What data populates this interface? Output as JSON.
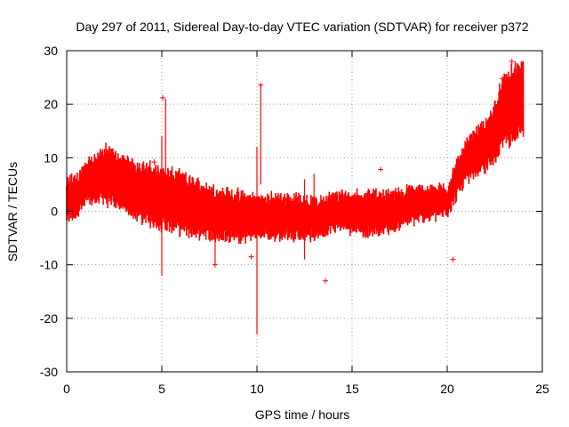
{
  "chart_data": {
    "type": "scatter",
    "title": "Day 297 of 2011, Sidereal Day-to-day VTEC variation (SDTVAR) for receiver p372",
    "xlabel": "GPS time / hours",
    "ylabel": "SDTVAR / TECUs",
    "xlim": [
      0,
      25
    ],
    "ylim": [
      -30,
      30
    ],
    "x_ticks": [
      0,
      5,
      10,
      15,
      20,
      25
    ],
    "y_ticks": [
      -30,
      -20,
      -10,
      0,
      10,
      20,
      30
    ],
    "grid": true,
    "marker": "+",
    "color": "#ff0000",
    "series": [
      {
        "name": "p372",
        "band_center": [
          [
            0,
            2
          ],
          [
            0.5,
            3
          ],
          [
            1,
            5
          ],
          [
            1.5,
            6
          ],
          [
            2,
            7
          ],
          [
            2.5,
            6
          ],
          [
            3,
            5
          ],
          [
            4,
            3.5
          ],
          [
            5,
            2.5
          ],
          [
            6,
            1.5
          ],
          [
            7,
            0.5
          ],
          [
            8,
            -0.5
          ],
          [
            9,
            -1
          ],
          [
            10,
            -1
          ],
          [
            11,
            -1
          ],
          [
            12,
            -1
          ],
          [
            13,
            -1.5
          ],
          [
            14,
            0
          ],
          [
            15,
            0
          ],
          [
            16,
            -0.5
          ],
          [
            17,
            0
          ],
          [
            18,
            1
          ],
          [
            19,
            1.5
          ],
          [
            20,
            2
          ],
          [
            20.5,
            6
          ],
          [
            21,
            9
          ],
          [
            21.5,
            11
          ],
          [
            22,
            12
          ],
          [
            22.5,
            15
          ],
          [
            23,
            19
          ],
          [
            23.5,
            20
          ],
          [
            24,
            21
          ]
        ],
        "band_halfwidth": [
          [
            0,
            3
          ],
          [
            1,
            3
          ],
          [
            2,
            4
          ],
          [
            3,
            4
          ],
          [
            5,
            4.5
          ],
          [
            7,
            4
          ],
          [
            9,
            3.5
          ],
          [
            10,
            3
          ],
          [
            12,
            3
          ],
          [
            14,
            2.5
          ],
          [
            16,
            3
          ],
          [
            18,
            2.5
          ],
          [
            20,
            2
          ],
          [
            21,
            3
          ],
          [
            22,
            3.5
          ],
          [
            23,
            5
          ],
          [
            24,
            6
          ]
        ],
        "spikes": [
          {
            "x": 5.0,
            "y_min": -12,
            "y_max": 14
          },
          {
            "x": 5.2,
            "y_min": -1,
            "y_max": 21
          },
          {
            "x": 10.0,
            "y_min": -23,
            "y_max": 12
          },
          {
            "x": 10.2,
            "y_min": 5,
            "y_max": 23.5
          },
          {
            "x": 7.8,
            "y_min": -10,
            "y_max": 2
          },
          {
            "x": 12.5,
            "y_min": -9,
            "y_max": 6
          },
          {
            "x": 13.0,
            "y_min": -5,
            "y_max": 7
          }
        ],
        "outliers": [
          {
            "x": 5.05,
            "y": 21.2
          },
          {
            "x": 10.2,
            "y": 23.6
          },
          {
            "x": 13.6,
            "y": -13
          },
          {
            "x": 16.5,
            "y": 7.8
          },
          {
            "x": 20.3,
            "y": -9
          },
          {
            "x": 22.9,
            "y": 24.8
          },
          {
            "x": 23.4,
            "y": 28
          },
          {
            "x": 23.8,
            "y": 26.2
          },
          {
            "x": 4.6,
            "y": 9.2
          },
          {
            "x": 7.8,
            "y": -10
          },
          {
            "x": 9.7,
            "y": -8.5
          }
        ]
      }
    ]
  }
}
